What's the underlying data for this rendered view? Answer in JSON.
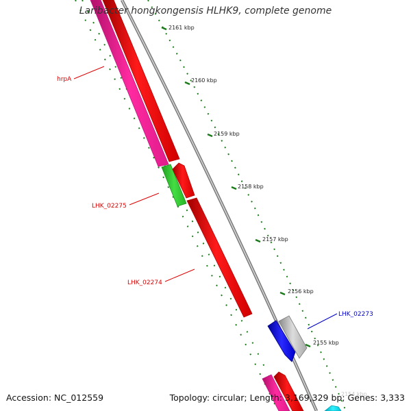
{
  "title": "Laribacter hongkongensis HLHK9, complete genome",
  "footer": {
    "accession": "Accession: NC_012559",
    "topology": "Topology: circular; Length: 3,169,329 bp; Genes: 3,333"
  },
  "ruler": {
    "ticks": [
      "2161 kbp",
      "2160 kbp",
      "2159 kbp",
      "2158 kbp",
      "2157 kbp",
      "2156 kbp",
      "2155 kbp",
      "2154 kbp"
    ],
    "color": "#1a7a1a"
  },
  "genes": [
    {
      "label": "hrpA",
      "color": "#ff2aa0",
      "label_color": "#dd0000"
    },
    {
      "label": "LHK_02275",
      "color": "#33cc33",
      "label_color": "#dd0000"
    },
    {
      "label": "LHK_02274",
      "color": "#ff1a1a",
      "label_color": "#dd0000"
    },
    {
      "label": "LHK_02273",
      "color": "#1a1aff",
      "label_color": "#0000cc"
    }
  ],
  "track_colors": {
    "cds_red": "#ff1a1a",
    "pink": "#ff2aa0",
    "backbone": "#888888",
    "grey_feature": "#c8c8c8",
    "cyan_feature": "#00d8e8"
  }
}
